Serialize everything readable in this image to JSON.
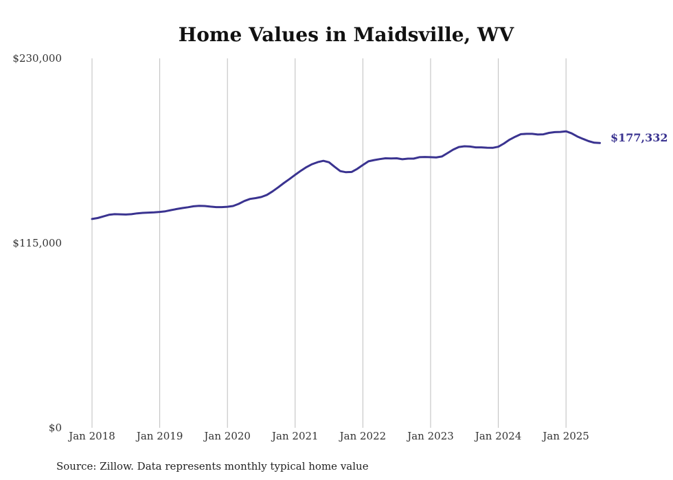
{
  "chart_data": {
    "type": "line",
    "title": "Home Values in Maidsville, WV",
    "xlabel": "",
    "ylabel": "",
    "ylim": [
      0,
      230000
    ],
    "y_ticks": [
      {
        "value": 0,
        "label": "$0"
      },
      {
        "value": 115000,
        "label": "$115,000"
      },
      {
        "value": 230000,
        "label": "$230,000"
      }
    ],
    "x_ticks": [
      "Jan 2018",
      "Jan 2019",
      "Jan 2020",
      "Jan 2021",
      "Jan 2022",
      "Jan 2023",
      "Jan 2024",
      "Jan 2025"
    ],
    "grid": "vertical",
    "line_color": "#3a3390",
    "end_label": "$177,332",
    "source": "Source: Zillow. Data represents monthly typical home value",
    "series": [
      {
        "name": "",
        "x": [
          "2018-01",
          "2018-02",
          "2018-03",
          "2018-04",
          "2018-05",
          "2018-06",
          "2018-07",
          "2018-08",
          "2018-09",
          "2018-10",
          "2018-11",
          "2018-12",
          "2019-01",
          "2019-02",
          "2019-03",
          "2019-04",
          "2019-05",
          "2019-06",
          "2019-07",
          "2019-08",
          "2019-09",
          "2019-10",
          "2019-11",
          "2019-12",
          "2020-01",
          "2020-02",
          "2020-03",
          "2020-04",
          "2020-05",
          "2020-06",
          "2020-07",
          "2020-08",
          "2020-09",
          "2020-10",
          "2020-11",
          "2020-12",
          "2021-01",
          "2021-02",
          "2021-03",
          "2021-04",
          "2021-05",
          "2021-06",
          "2021-07",
          "2021-08",
          "2021-09",
          "2021-10",
          "2021-11",
          "2021-12",
          "2022-01",
          "2022-02",
          "2022-03",
          "2022-04",
          "2022-05",
          "2022-06",
          "2022-07",
          "2022-08",
          "2022-09",
          "2022-10",
          "2022-11",
          "2022-12",
          "2023-01",
          "2023-02",
          "2023-03",
          "2023-04",
          "2023-05",
          "2023-06",
          "2023-07",
          "2023-08",
          "2023-09",
          "2023-10",
          "2023-11",
          "2023-12",
          "2024-01",
          "2024-02",
          "2024-03",
          "2024-04",
          "2024-05",
          "2024-06",
          "2024-07",
          "2024-08",
          "2024-09",
          "2024-10",
          "2024-11",
          "2024-12",
          "2025-01",
          "2025-02",
          "2025-03",
          "2025-04",
          "2025-05",
          "2025-06",
          "2025-07"
        ],
        "values": [
          130000,
          130600,
          131600,
          132600,
          133000,
          132900,
          132800,
          133000,
          133500,
          133800,
          134000,
          134100,
          134400,
          134800,
          135500,
          136200,
          136800,
          137300,
          137900,
          138200,
          138100,
          137700,
          137400,
          137400,
          137600,
          138100,
          139400,
          141200,
          142500,
          143000,
          143700,
          145000,
          147200,
          149700,
          152400,
          154900,
          157500,
          160000,
          162300,
          164100,
          165400,
          166200,
          165300,
          162500,
          159800,
          159100,
          159300,
          161200,
          163600,
          165900,
          166700,
          167300,
          167800,
          167700,
          167800,
          167200,
          167600,
          167600,
          168500,
          168600,
          168500,
          168300,
          168900,
          171000,
          173200,
          174800,
          175300,
          175100,
          174600,
          174600,
          174400,
          174300,
          175000,
          177000,
          179400,
          181200,
          182800,
          183000,
          183000,
          182600,
          182700,
          183600,
          184100,
          184200,
          184600,
          183300,
          181400,
          179900,
          178500,
          177500,
          177332
        ]
      }
    ]
  }
}
